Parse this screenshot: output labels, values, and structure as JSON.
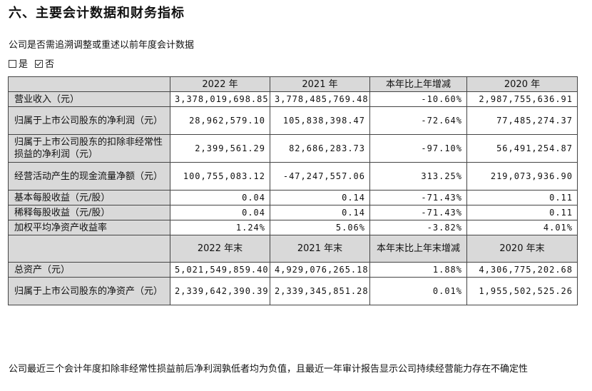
{
  "title": "六、主要会计数据和财务指标",
  "question": "公司是否需追溯调整或重述以前年度会计数据",
  "options": {
    "yes": "是",
    "no": "否",
    "checked": "no"
  },
  "table": {
    "header1": [
      "",
      "2022 年",
      "2021 年",
      "本年比上年增减",
      "2020 年"
    ],
    "rows1": [
      [
        "营业收入（元）",
        "3,378,019,698.85",
        "3,778,485,769.48",
        "-10.60%",
        "2,987,755,636.91"
      ],
      [
        "归属于上市公司股东的净利润（元）",
        "28,962,579.10",
        "105,838,398.47",
        "-72.64%",
        "77,485,274.37"
      ],
      [
        "归属于上市公司股东的扣除非经常性损益的净利润（元）",
        "2,399,561.29",
        "82,686,283.73",
        "-97.10%",
        "56,491,254.87"
      ],
      [
        "经营活动产生的现金流量净额（元）",
        "100,755,083.12",
        "-47,247,557.06",
        "313.25%",
        "219,073,936.90"
      ],
      [
        "基本每股收益（元/股）",
        "0.04",
        "0.14",
        "-71.43%",
        "0.11"
      ],
      [
        "稀释每股收益（元/股）",
        "0.04",
        "0.14",
        "-71.43%",
        "0.11"
      ],
      [
        "加权平均净资产收益率",
        "1.24%",
        "5.06%",
        "-3.82%",
        "4.01%"
      ]
    ],
    "header2": [
      "",
      "2022 年末",
      "2021 年末",
      "本年末比上年末增减",
      "2020 年末"
    ],
    "rows2": [
      [
        "总资产（元）",
        "5,021,549,859.40",
        "4,929,076,265.18",
        "1.88%",
        "4,306,775,202.68"
      ],
      [
        "归属于上市公司股东的净资产（元）",
        "2,339,642,390.39",
        "2,339,345,851.28",
        "0.01%",
        "1,955,502,525.26"
      ]
    ]
  },
  "note": "公司最近三个会计年度扣除非经常性损益前后净利润孰低者均为负值，且最近一年审计报告显示公司持续经营能力存在不确定性"
}
